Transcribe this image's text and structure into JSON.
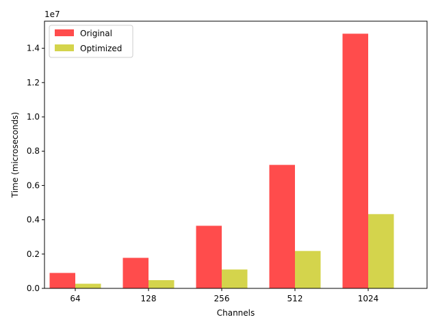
{
  "chart_data": {
    "type": "bar",
    "title": "",
    "xlabel": "Channels",
    "ylabel": "Time (microseconds)",
    "y_scale_label": "1e7",
    "y_scale": 10000000,
    "categories": [
      "64",
      "128",
      "256",
      "512",
      "1024"
    ],
    "series": [
      {
        "name": "Original",
        "color": "#ff4c4c",
        "values": [
          900000,
          1780000,
          3650000,
          7200000,
          14850000
        ]
      },
      {
        "name": "Optimized",
        "color": "#d4d44c",
        "values": [
          270000,
          480000,
          1100000,
          2180000,
          4330000
        ]
      }
    ],
    "ylim": [
      0,
      15580000
    ],
    "yticks": [
      0,
      2000000,
      4000000,
      6000000,
      8000000,
      10000000,
      12000000,
      14000000
    ],
    "ytick_labels": [
      "0.0",
      "0.2",
      "0.4",
      "0.6",
      "0.8",
      "1.0",
      "1.2",
      "1.4"
    ],
    "grid": false,
    "legend_position": "top-left"
  }
}
